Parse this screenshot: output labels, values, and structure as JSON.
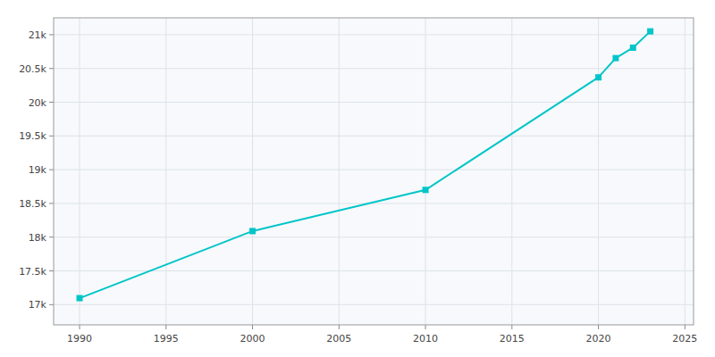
{
  "chart_data": {
    "type": "line",
    "x": [
      1990,
      2000,
      2010,
      2020,
      2021,
      2022,
      2023
    ],
    "values": [
      17096,
      18090,
      18700,
      20368,
      20653,
      20808,
      21050
    ],
    "color": "#00C5C8",
    "marker": "square",
    "xlim": [
      1988.5,
      2025.5
    ],
    "ylim": [
      16700,
      21250
    ],
    "xticks": [
      1990,
      1995,
      2000,
      2005,
      2010,
      2015,
      2020,
      2025
    ],
    "yticks": [
      {
        "value": 17000,
        "label": "17k"
      },
      {
        "value": 17500,
        "label": "17.5k"
      },
      {
        "value": 18000,
        "label": "18k"
      },
      {
        "value": 18500,
        "label": "18.5k"
      },
      {
        "value": 19000,
        "label": "19k"
      },
      {
        "value": 19500,
        "label": "19.5k"
      },
      {
        "value": 20000,
        "label": "20k"
      },
      {
        "value": 20500,
        "label": "20.5k"
      },
      {
        "value": 21000,
        "label": "21k"
      }
    ],
    "grid": true
  }
}
